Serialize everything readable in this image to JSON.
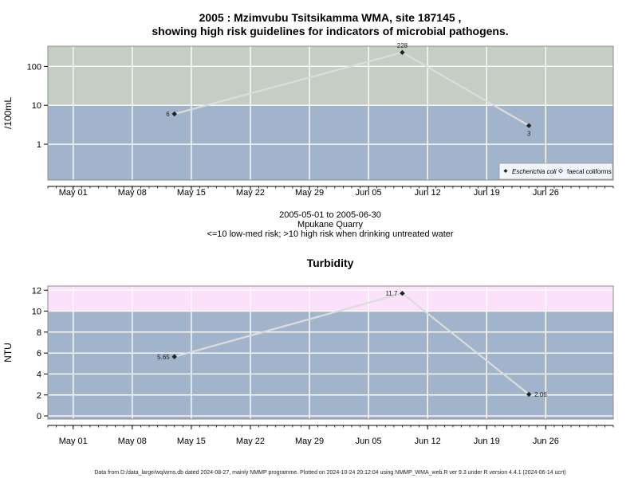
{
  "footer": "Data from D:/data_large/wq/wms.db dated 2024-08-27, mainly NMMP programme. Plotted on 2024-10-24 20:12:04 using NMMP_WMA_web.R ver 9.3 under R version 4.4.1 (2024-06-14 ucrt)",
  "x_ticks": [
    {
      "label": "May 01",
      "date": "2005-05-01"
    },
    {
      "label": "May 08",
      "date": "2005-05-08"
    },
    {
      "label": "May 15",
      "date": "2005-05-15"
    },
    {
      "label": "May 22",
      "date": "2005-05-22"
    },
    {
      "label": "May 29",
      "date": "2005-05-29"
    },
    {
      "label": "Jun 05",
      "date": "2005-06-05"
    },
    {
      "label": "Jun 12",
      "date": "2005-06-12"
    },
    {
      "label": "Jun 19",
      "date": "2005-06-19"
    },
    {
      "label": "Jun 26",
      "date": "2005-06-26"
    }
  ],
  "chart_data": [
    {
      "type": "line",
      "title_line1": "2005 : Mzimvubu Tsitsikamma WMA, site 187145 ,",
      "title_line2": "showing high risk guidelines for indicators of microbial pathogens.",
      "ylabel": "/100mL",
      "yscale": "log",
      "ylim": [
        0.12,
        330
      ],
      "xlim": [
        "2005-04-28",
        "2005-07-04"
      ],
      "grid": true,
      "y_ticks": [
        {
          "label": "1",
          "value": 1
        },
        {
          "label": "10",
          "value": 10
        },
        {
          "label": "100",
          "value": 100
        }
      ],
      "bands": [
        {
          "from": 0.12,
          "to": 10,
          "color": "#a2b3cc"
        },
        {
          "from": 10,
          "to": 330,
          "color": "#c4cec4"
        }
      ],
      "series": [
        {
          "name": "Escherichia coli",
          "color": "#dcdcdc",
          "marker_color": "#222222",
          "points": [
            {
              "x": "2005-05-13",
              "y": 6,
              "label": "6"
            },
            {
              "x": "2005-06-09",
              "y": 228,
              "label": "228"
            },
            {
              "x": "2005-06-24",
              "y": 3,
              "label": "3"
            }
          ]
        }
      ],
      "legend": {
        "position": "bottom-right",
        "entries": [
          "Escherichia coli",
          "faecal coliforms"
        ]
      },
      "subtitle_lines": [
        "2005-05-01 to 2005-06-30",
        "Mpukane Quarry",
        "<=10 low-med risk; >10 high risk when drinking untreated water"
      ]
    },
    {
      "type": "line",
      "title": "Turbidity",
      "ylabel": "NTU",
      "yscale": "linear",
      "ylim": [
        -0.3,
        12.4
      ],
      "xlim": [
        "2005-04-28",
        "2005-07-04"
      ],
      "grid": true,
      "y_ticks": [
        {
          "label": "0",
          "value": 0
        },
        {
          "label": "2",
          "value": 2
        },
        {
          "label": "4",
          "value": 4
        },
        {
          "label": "6",
          "value": 6
        },
        {
          "label": "8",
          "value": 8
        },
        {
          "label": "10",
          "value": 10
        },
        {
          "label": "12",
          "value": 12
        }
      ],
      "bands": [
        {
          "from": -0.3,
          "to": 10,
          "color": "#a2b3cc"
        },
        {
          "from": 10,
          "to": 12.4,
          "color": "#fce1fa"
        }
      ],
      "series": [
        {
          "color": "#dcdcdc",
          "marker_color": "#222222",
          "points": [
            {
              "x": "2005-05-13",
              "y": 5.65,
              "label": "5.65"
            },
            {
              "x": "2005-06-09",
              "y": 11.7,
              "label": "11.7"
            },
            {
              "x": "2005-06-24",
              "y": 2.06,
              "label": "2.06"
            }
          ]
        }
      ]
    }
  ]
}
